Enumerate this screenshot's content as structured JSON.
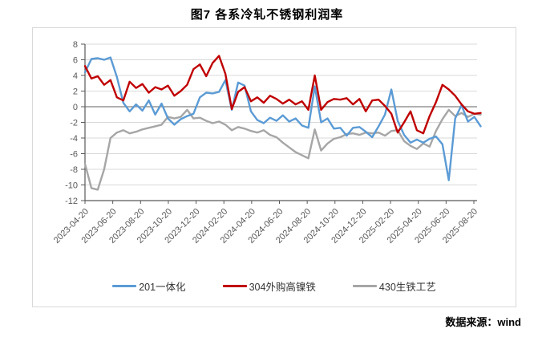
{
  "title": "图7 各系冷轧不锈钢利润率",
  "source_note": "数据来源：wind",
  "colors": {
    "series_blue": "#5B9BD5",
    "series_red": "#C00000",
    "series_gray": "#A6A6A6",
    "gridline": "#D9D9D9",
    "zero_line": "#808080",
    "axis": "#595959",
    "tick_label": "#595959"
  },
  "chart_data": {
    "type": "line",
    "title": "图7 各系冷轧不锈钢利润率",
    "xlabel": "",
    "ylabel": "",
    "ylim": [
      -12,
      8
    ],
    "y_ticks": [
      8,
      6,
      4,
      2,
      0,
      -2,
      -4,
      -6,
      -8,
      -10,
      -12
    ],
    "grid": true,
    "legend_position": "bottom",
    "x_tick_labels": [
      "2023-04-20",
      "2023-06-20",
      "2023-08-20",
      "2023-10-20",
      "2023-12-20",
      "2024-02-20",
      "2024-04-20",
      "2024-06-20",
      "2024-08-20",
      "2024-10-20",
      "2024-12-20",
      "2025-02-20",
      "2025-04-20",
      "2025-06-20",
      "2025-08-20"
    ],
    "x": [
      "2023-04-20",
      "2023-05-04",
      "2023-05-18",
      "2023-06-01",
      "2023-06-15",
      "2023-06-29",
      "2023-07-13",
      "2023-07-27",
      "2023-08-10",
      "2023-08-24",
      "2023-09-07",
      "2023-09-21",
      "2023-10-05",
      "2023-10-19",
      "2023-11-02",
      "2023-11-16",
      "2023-11-30",
      "2023-12-14",
      "2023-12-28",
      "2024-01-11",
      "2024-01-25",
      "2024-02-08",
      "2024-02-22",
      "2024-03-07",
      "2024-03-21",
      "2024-04-04",
      "2024-04-18",
      "2024-05-02",
      "2024-05-16",
      "2024-05-30",
      "2024-06-13",
      "2024-06-27",
      "2024-07-11",
      "2024-07-25",
      "2024-08-08",
      "2024-08-22",
      "2024-09-05",
      "2024-09-19",
      "2024-10-03",
      "2024-10-17",
      "2024-10-31",
      "2024-11-14",
      "2024-11-28",
      "2024-12-12",
      "2024-12-26",
      "2025-01-09",
      "2025-01-23",
      "2025-02-06",
      "2025-02-20",
      "2025-03-06",
      "2025-03-20",
      "2025-04-03",
      "2025-04-17",
      "2025-05-01",
      "2025-05-15",
      "2025-05-29",
      "2025-06-12",
      "2025-06-26",
      "2025-07-10",
      "2025-07-24",
      "2025-08-07",
      "2025-08-21",
      "2025-09-04"
    ],
    "draw_order": [
      2,
      0,
      1
    ],
    "series": [
      {
        "name": "201一体化",
        "color": "#5B9BD5",
        "values": [
          4.4,
          6.1,
          6.2,
          6.0,
          6.3,
          3.8,
          0.5,
          -0.6,
          0.3,
          -0.5,
          0.8,
          -1.0,
          0.4,
          -1.5,
          -2.3,
          -1.6,
          -1.2,
          -0.9,
          1.2,
          1.8,
          1.7,
          1.9,
          3.4,
          -0.4,
          3.1,
          2.7,
          -0.6,
          -1.7,
          -2.1,
          -1.4,
          -1.8,
          -1.1,
          -1.9,
          -1.5,
          -2.4,
          -2.7,
          2.6,
          -2.0,
          -1.5,
          -2.8,
          -2.7,
          -3.7,
          -2.7,
          -2.6,
          -3.2,
          -3.9,
          -2.5,
          -1.0,
          2.2,
          -1.8,
          -3.6,
          -4.6,
          -4.2,
          -4.6,
          -4.1,
          -3.8,
          -4.8,
          -9.4,
          -1.5,
          0.2,
          -1.9,
          -1.3,
          -2.5
        ]
      },
      {
        "name": "304外购高镍铁",
        "color": "#C00000",
        "values": [
          5.2,
          3.6,
          3.9,
          2.8,
          3.4,
          1.2,
          0.8,
          3.2,
          2.4,
          2.9,
          1.8,
          2.5,
          2.2,
          2.7,
          1.4,
          2.0,
          2.8,
          4.8,
          5.4,
          3.9,
          5.6,
          6.5,
          4.2,
          -0.3,
          1.9,
          2.5,
          0.7,
          1.2,
          0.5,
          1.4,
          1.0,
          0.4,
          0.9,
          0.3,
          0.7,
          -0.4,
          4.0,
          -0.4,
          0.6,
          1.0,
          0.9,
          1.1,
          0.3,
          1.0,
          -0.6,
          0.8,
          0.9,
          0.1,
          -0.9,
          -3.3,
          -2.0,
          -0.6,
          -3.0,
          -3.4,
          -1.2,
          0.6,
          2.8,
          2.2,
          1.4,
          0.3,
          -0.6,
          -0.9,
          -0.8
        ]
      },
      {
        "name": "430生铁工艺",
        "color": "#A6A6A6",
        "values": [
          -7.3,
          -10.4,
          -10.6,
          -8.0,
          -4.0,
          -3.3,
          -3.0,
          -3.4,
          -3.2,
          -2.9,
          -2.7,
          -2.5,
          -2.3,
          -1.3,
          -1.5,
          -1.3,
          -0.4,
          -1.5,
          -1.4,
          -1.8,
          -2.1,
          -1.9,
          -2.3,
          -3.0,
          -2.6,
          -2.8,
          -3.1,
          -3.3,
          -3.0,
          -3.6,
          -3.9,
          -4.6,
          -5.2,
          -5.8,
          -6.2,
          -6.6,
          -2.9,
          -5.6,
          -4.7,
          -4.1,
          -3.9,
          -3.5,
          -3.4,
          -3.6,
          -3.3,
          -3.4,
          -3.3,
          -3.7,
          -3.1,
          -3.0,
          -4.4,
          -5.0,
          -5.4,
          -4.7,
          -5.1,
          -3.1,
          -1.6,
          -0.4,
          -1.2,
          -0.8,
          -1.3,
          -0.9,
          -1.0
        ]
      }
    ]
  }
}
